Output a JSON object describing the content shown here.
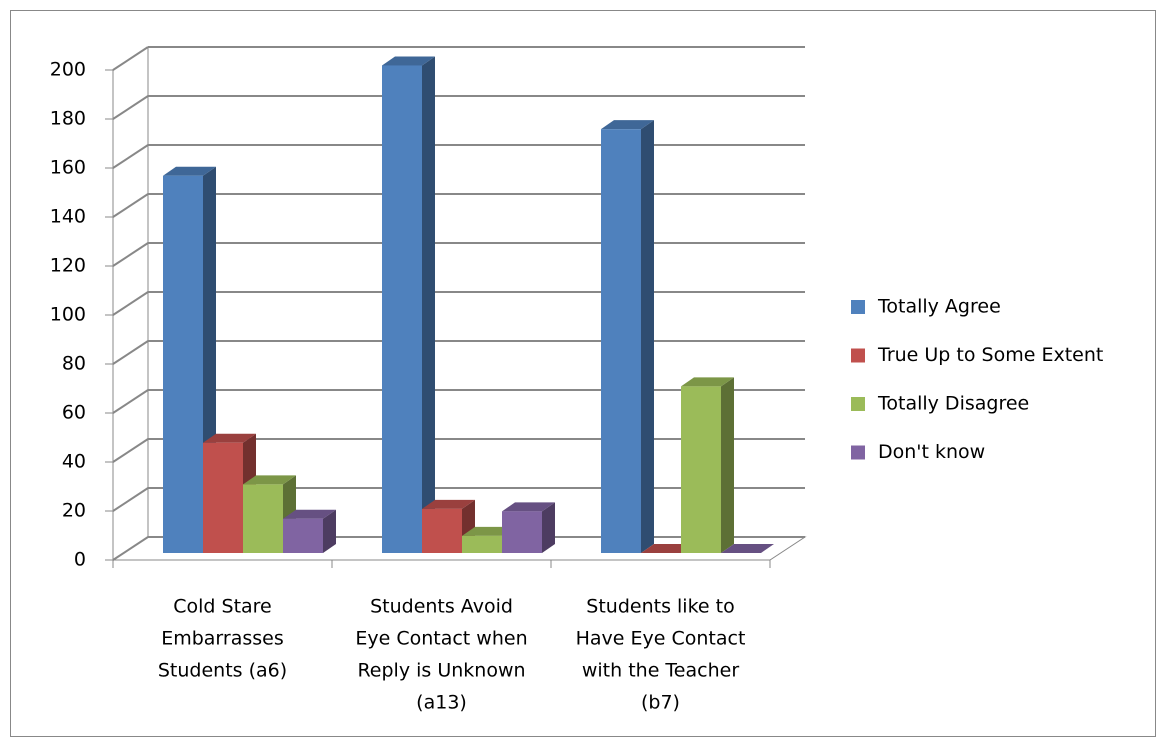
{
  "chart_data": {
    "type": "bar3d",
    "categories": [
      [
        "Cold Stare",
        "Embarrasses",
        "Students (a6)"
      ],
      [
        "Students Avoid",
        "Eye Contact when",
        "Reply is Unknown",
        "(a13)"
      ],
      [
        "Students like to",
        "Have Eye Contact",
        "with the Teacher",
        "(b7)"
      ]
    ],
    "series": [
      {
        "name": "Totally Agree",
        "color": "#4f81bd",
        "values": [
          154,
          199,
          173
        ]
      },
      {
        "name": "True Up to Some Extent",
        "color": "#c0504d",
        "values": [
          45,
          18,
          0
        ]
      },
      {
        "name": "Totally Disagree",
        "color": "#9bbb59",
        "values": [
          28,
          7,
          68
        ]
      },
      {
        "name": "Don't know",
        "color": "#8064a2",
        "values": [
          14,
          17,
          0
        ]
      }
    ],
    "ylim": [
      0,
      200
    ],
    "yticks": [
      0,
      20,
      40,
      60,
      80,
      100,
      120,
      140,
      160,
      180,
      200
    ],
    "grid": true,
    "legend": "right"
  }
}
